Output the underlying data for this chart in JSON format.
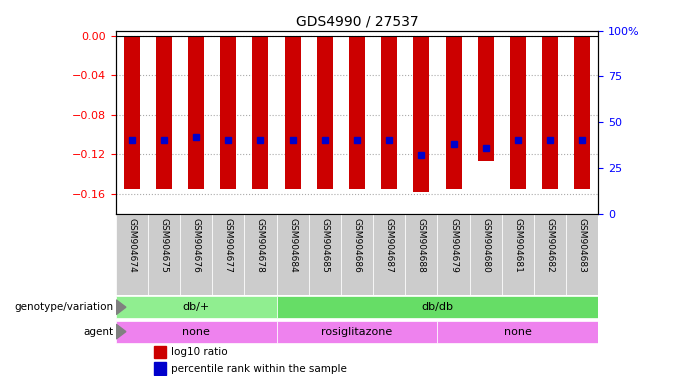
{
  "title": "GDS4990 / 27537",
  "samples": [
    "GSM904674",
    "GSM904675",
    "GSM904676",
    "GSM904677",
    "GSM904678",
    "GSM904684",
    "GSM904685",
    "GSM904686",
    "GSM904687",
    "GSM904688",
    "GSM904679",
    "GSM904680",
    "GSM904681",
    "GSM904682",
    "GSM904683"
  ],
  "log10_ratio": [
    -0.155,
    -0.155,
    -0.155,
    -0.155,
    -0.155,
    -0.155,
    -0.155,
    -0.155,
    -0.155,
    -0.158,
    -0.155,
    -0.127,
    -0.155,
    -0.155,
    -0.155
  ],
  "percentile_rank": [
    40,
    40,
    42,
    40,
    40,
    40,
    40,
    40,
    40,
    32,
    38,
    36,
    40,
    40,
    40
  ],
  "genotype_groups": [
    {
      "label": "db/+",
      "start": 0,
      "end": 5,
      "color": "#90EE90"
    },
    {
      "label": "db/db",
      "start": 5,
      "end": 15,
      "color": "#66DD66"
    }
  ],
  "agent_groups": [
    {
      "label": "none",
      "start": 0,
      "end": 5,
      "color": "#EE82EE"
    },
    {
      "label": "rosiglitazone",
      "start": 5,
      "end": 10,
      "color": "#EE82EE"
    },
    {
      "label": "none",
      "start": 10,
      "end": 15,
      "color": "#EE82EE"
    }
  ],
  "ylim_left": [
    -0.18,
    0.005
  ],
  "ylim_right": [
    0,
    100
  ],
  "left_ticks": [
    0,
    -0.04,
    -0.08,
    -0.12,
    -0.16
  ],
  "right_ticks": [
    0,
    25,
    50,
    75,
    100
  ],
  "bar_color": "#CC0000",
  "dot_color": "#0000CC",
  "background_color": "#ffffff",
  "grid_color": "#aaaaaa"
}
